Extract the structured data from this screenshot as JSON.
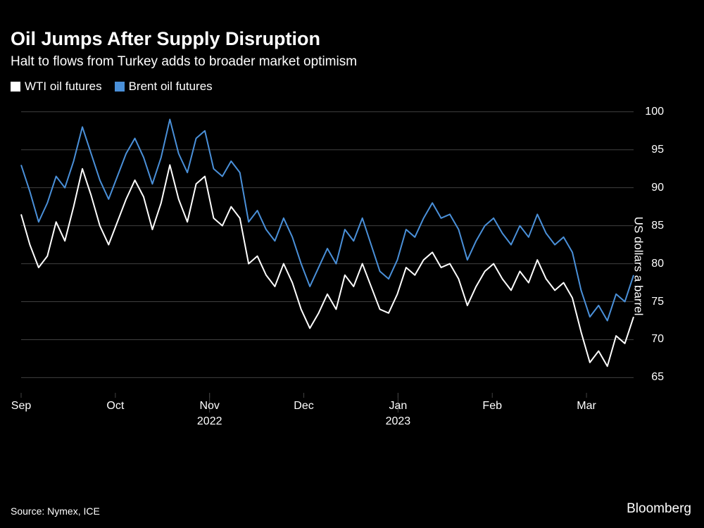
{
  "chart": {
    "type": "line",
    "title": "Oil Jumps After Supply Disruption",
    "subtitle": "Halt to flows from Turkey adds to broader market optimism",
    "background_color": "#000000",
    "text_color": "#ffffff",
    "grid_color": "#404040",
    "title_fontsize": 27,
    "subtitle_fontsize": 19,
    "legend_fontsize": 17,
    "tick_fontsize": 16,
    "line_width": 2,
    "legend": [
      {
        "label": "WTI oil futures",
        "color": "#ffffff"
      },
      {
        "label": "Brent oil futures",
        "color": "#4a90d9"
      }
    ],
    "y_axis": {
      "label": "US dollars a barrel",
      "ticks": [
        65,
        70,
        75,
        80,
        85,
        90,
        95,
        100
      ],
      "min": 63,
      "max": 101
    },
    "x_axis": {
      "ticks": [
        "Sep",
        "Oct",
        "Nov",
        "Dec",
        "Jan",
        "Feb",
        "Mar"
      ],
      "years": [
        {
          "label": "2022",
          "pos_index": 2
        },
        {
          "label": "2023",
          "pos_index": 4
        }
      ]
    },
    "series": {
      "wti": [
        86.5,
        82.5,
        79.5,
        81.0,
        85.5,
        83.0,
        87.5,
        92.5,
        89.0,
        85.0,
        82.5,
        85.5,
        88.5,
        91.0,
        88.8,
        84.5,
        88.0,
        93.0,
        88.5,
        85.5,
        90.5,
        91.5,
        86.0,
        85.0,
        87.5,
        86.0,
        80.0,
        81.0,
        78.5,
        77.0,
        80.0,
        77.5,
        74.0,
        71.5,
        73.5,
        76.0,
        74.0,
        78.5,
        77.0,
        80.0,
        77.0,
        74.0,
        73.5,
        76.0,
        79.5,
        78.5,
        80.5,
        81.5,
        79.5,
        80.0,
        78.0,
        74.5,
        77.0,
        79.0,
        80.0,
        78.0,
        76.5,
        79.0,
        77.5,
        80.5,
        78.0,
        76.5,
        77.5,
        75.5,
        71.0,
        67.0,
        68.5,
        66.5,
        70.5,
        69.5,
        73.0
      ],
      "brent": [
        93.0,
        89.5,
        85.5,
        88.0,
        91.5,
        90.0,
        93.5,
        98.0,
        94.5,
        91.0,
        88.5,
        91.5,
        94.5,
        96.5,
        94.0,
        90.5,
        94.0,
        99.0,
        94.5,
        92.0,
        96.5,
        97.5,
        92.5,
        91.5,
        93.5,
        92.0,
        85.5,
        87.0,
        84.5,
        83.0,
        86.0,
        83.5,
        80.0,
        77.0,
        79.5,
        82.0,
        80.0,
        84.5,
        83.0,
        86.0,
        82.5,
        79.0,
        78.0,
        80.5,
        84.5,
        83.5,
        86.0,
        88.0,
        86.0,
        86.5,
        84.5,
        80.5,
        83.0,
        85.0,
        86.0,
        84.0,
        82.5,
        85.0,
        83.5,
        86.5,
        84.0,
        82.5,
        83.5,
        81.5,
        76.5,
        73.0,
        74.5,
        72.5,
        76.0,
        75.0,
        78.5
      ]
    },
    "source": "Source: Nymex, ICE",
    "watermark": "Bloomberg"
  }
}
